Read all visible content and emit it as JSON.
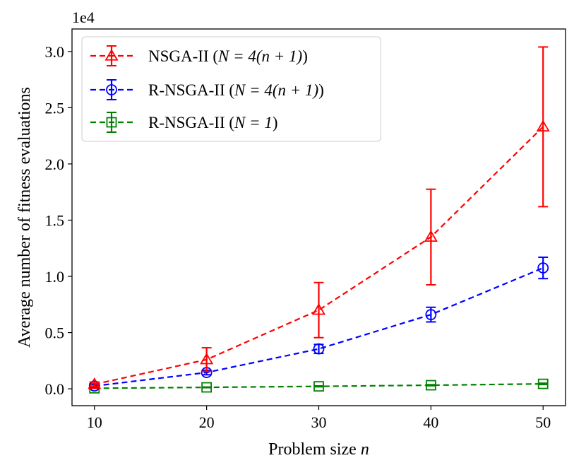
{
  "chart_data": {
    "type": "line",
    "title": "",
    "xlabel_main": "Problem size ",
    "xlabel_var": "n",
    "ylabel": "Average number of fitness evaluations",
    "y_offset_label": "1e4",
    "x": [
      10,
      20,
      30,
      40,
      50
    ],
    "xlim": [
      8.0,
      52.0
    ],
    "ylim": [
      -0.15,
      3.2
    ],
    "xticks": [
      10,
      20,
      30,
      40,
      50
    ],
    "xtick_labels": [
      "10",
      "20",
      "30",
      "40",
      "50"
    ],
    "yticks": [
      0.0,
      0.5,
      1.0,
      1.5,
      2.0,
      2.5,
      3.0
    ],
    "ytick_labels": [
      "0.0",
      "0.5",
      "1.0",
      "1.5",
      "2.0",
      "2.5",
      "3.0"
    ],
    "grid": false,
    "legend_position": "top-left",
    "series": [
      {
        "name": "NSGA-II (N=4(n+1))",
        "legend_prefix": "NSGA-II (",
        "legend_math": "N = 4(n + 1)",
        "legend_suffix": ")",
        "color": "#ff0000",
        "marker": "triangle",
        "linestyle": "dashed",
        "values": [
          0.04,
          0.26,
          0.7,
          1.35,
          2.33
        ],
        "errors": [
          0.02,
          0.105,
          0.245,
          0.425,
          0.71
        ]
      },
      {
        "name": "R-NSGA-II (N=4(n+1))",
        "legend_prefix": "R-NSGA-II (",
        "legend_math": "N = 4(n + 1)",
        "legend_suffix": ")",
        "color": "#0000ff",
        "marker": "circle",
        "linestyle": "dashed",
        "values": [
          0.025,
          0.145,
          0.355,
          0.66,
          1.075
        ],
        "errors": [
          0.01,
          0.02,
          0.04,
          0.065,
          0.095
        ]
      },
      {
        "name": "R-NSGA-II (N=1)",
        "legend_prefix": "R-NSGA-II (",
        "legend_math": "N = 1",
        "legend_suffix": ")",
        "color": "#008000",
        "marker": "square",
        "linestyle": "dashed",
        "values": [
          0.005,
          0.013,
          0.022,
          0.032,
          0.044
        ],
        "errors": [
          0.002,
          0.003,
          0.004,
          0.005,
          0.006
        ]
      }
    ]
  }
}
